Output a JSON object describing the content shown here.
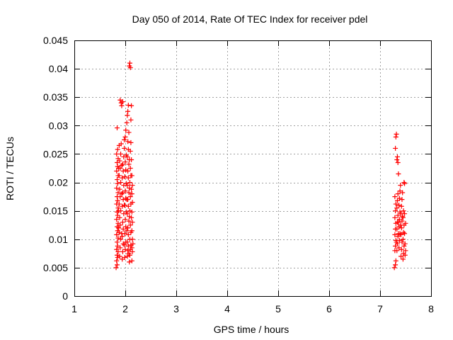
{
  "chart_data": {
    "type": "scatter",
    "title": "Day 050 of 2014, Rate Of TEC Index for receiver pdel",
    "xlabel": "GPS time / hours",
    "ylabel": "ROTI / TECUs",
    "xlim": [
      1,
      8
    ],
    "ylim": [
      0,
      0.045
    ],
    "xticks": [
      1,
      2,
      3,
      4,
      5,
      6,
      7,
      8
    ],
    "yticks": [
      0,
      0.005,
      0.01,
      0.015,
      0.02,
      0.025,
      0.03,
      0.035,
      0.04,
      0.045
    ],
    "ytick_labels": [
      "0",
      "0.005",
      "0.01",
      "0.015",
      "0.02",
      "0.025",
      "0.03",
      "0.035",
      "0.04",
      "0.045"
    ],
    "grid": true,
    "marker": "+",
    "series_color": "#ff0000",
    "series": [
      {
        "name": "ROTI",
        "points": [
          [
            1.82,
            0.005
          ],
          [
            1.84,
            0.0055
          ],
          [
            1.83,
            0.0062
          ],
          [
            1.85,
            0.0068
          ],
          [
            1.84,
            0.0072
          ],
          [
            1.86,
            0.0078
          ],
          [
            1.83,
            0.0082
          ],
          [
            1.85,
            0.0088
          ],
          [
            1.84,
            0.0095
          ],
          [
            1.86,
            0.0102
          ],
          [
            1.83,
            0.0108
          ],
          [
            1.85,
            0.0115
          ],
          [
            1.84,
            0.0122
          ],
          [
            1.86,
            0.0128
          ],
          [
            1.83,
            0.0135
          ],
          [
            1.85,
            0.0142
          ],
          [
            1.84,
            0.0148
          ],
          [
            1.86,
            0.0155
          ],
          [
            1.83,
            0.0162
          ],
          [
            1.85,
            0.0168
          ],
          [
            1.84,
            0.0175
          ],
          [
            1.86,
            0.0182
          ],
          [
            1.83,
            0.019
          ],
          [
            1.85,
            0.0198
          ],
          [
            1.84,
            0.0205
          ],
          [
            1.86,
            0.0212
          ],
          [
            1.83,
            0.022
          ],
          [
            1.85,
            0.0228
          ],
          [
            1.84,
            0.0235
          ],
          [
            1.86,
            0.0242
          ],
          [
            1.83,
            0.025
          ],
          [
            1.85,
            0.0258
          ],
          [
            1.84,
            0.0296
          ],
          [
            1.88,
            0.0265
          ],
          [
            1.89,
            0.007
          ],
          [
            1.9,
            0.0085
          ],
          [
            1.91,
            0.01
          ],
          [
            1.88,
            0.0112
          ],
          [
            1.9,
            0.0125
          ],
          [
            1.89,
            0.0138
          ],
          [
            1.91,
            0.015
          ],
          [
            1.88,
            0.0162
          ],
          [
            1.9,
            0.0175
          ],
          [
            1.89,
            0.0188
          ],
          [
            1.91,
            0.02
          ],
          [
            1.88,
            0.0212
          ],
          [
            1.9,
            0.0225
          ],
          [
            1.89,
            0.0238
          ],
          [
            1.91,
            0.025
          ],
          [
            1.92,
            0.0268
          ],
          [
            1.9,
            0.0345
          ],
          [
            1.92,
            0.034
          ],
          [
            1.93,
            0.0335
          ],
          [
            1.95,
            0.0342
          ],
          [
            1.94,
            0.0065
          ],
          [
            1.95,
            0.0078
          ],
          [
            1.96,
            0.0092
          ],
          [
            1.94,
            0.0105
          ],
          [
            1.96,
            0.0118
          ],
          [
            1.95,
            0.013
          ],
          [
            1.97,
            0.0145
          ],
          [
            1.94,
            0.0158
          ],
          [
            1.96,
            0.017
          ],
          [
            1.95,
            0.0182
          ],
          [
            1.97,
            0.0195
          ],
          [
            1.94,
            0.0208
          ],
          [
            1.96,
            0.022
          ],
          [
            1.95,
            0.0232
          ],
          [
            1.97,
            0.0245
          ],
          [
            1.98,
            0.026
          ],
          [
            1.98,
            0.0275
          ],
          [
            1.99,
            0.0068
          ],
          [
            2.0,
            0.0082
          ],
          [
            2.01,
            0.0095
          ],
          [
            1.99,
            0.011
          ],
          [
            2.01,
            0.0122
          ],
          [
            2.0,
            0.0135
          ],
          [
            2.02,
            0.0148
          ],
          [
            1.99,
            0.016
          ],
          [
            2.01,
            0.0172
          ],
          [
            2.0,
            0.0185
          ],
          [
            2.02,
            0.0198
          ],
          [
            1.99,
            0.021
          ],
          [
            2.01,
            0.0222
          ],
          [
            2.0,
            0.0236
          ],
          [
            2.02,
            0.0248
          ],
          [
            2.0,
            0.028
          ],
          [
            2.01,
            0.0292
          ],
          [
            2.03,
            0.0305
          ],
          [
            2.04,
            0.0318
          ],
          [
            2.05,
            0.0325
          ],
          [
            2.06,
            0.0336
          ],
          [
            2.04,
            0.007
          ],
          [
            2.05,
            0.008
          ],
          [
            2.06,
            0.0088
          ],
          [
            2.07,
            0.0075
          ],
          [
            2.04,
            0.0095
          ],
          [
            2.06,
            0.0108
          ],
          [
            2.05,
            0.012
          ],
          [
            2.07,
            0.0132
          ],
          [
            2.04,
            0.0145
          ],
          [
            2.06,
            0.0158
          ],
          [
            2.05,
            0.017
          ],
          [
            2.07,
            0.0182
          ],
          [
            2.04,
            0.0195
          ],
          [
            2.06,
            0.0208
          ],
          [
            2.05,
            0.022
          ],
          [
            2.07,
            0.0232
          ],
          [
            2.04,
            0.0245
          ],
          [
            2.06,
            0.0258
          ],
          [
            2.05,
            0.0272
          ],
          [
            2.07,
            0.0288
          ],
          [
            2.08,
            0.006
          ],
          [
            2.09,
            0.0072
          ],
          [
            2.1,
            0.0082
          ],
          [
            2.11,
            0.009
          ],
          [
            2.09,
            0.01
          ],
          [
            2.11,
            0.0112
          ],
          [
            2.1,
            0.0125
          ],
          [
            2.12,
            0.0138
          ],
          [
            2.09,
            0.015
          ],
          [
            2.11,
            0.0162
          ],
          [
            2.1,
            0.0175
          ],
          [
            2.12,
            0.0188
          ],
          [
            2.09,
            0.02
          ],
          [
            2.11,
            0.0212
          ],
          [
            2.1,
            0.0225
          ],
          [
            2.12,
            0.024
          ],
          [
            2.1,
            0.0255
          ],
          [
            2.11,
            0.027
          ],
          [
            2.08,
            0.0405
          ],
          [
            2.09,
            0.041
          ],
          [
            2.1,
            0.0402
          ],
          [
            2.13,
            0.0062
          ],
          [
            2.14,
            0.0078
          ],
          [
            2.13,
            0.0085
          ],
          [
            2.15,
            0.0092
          ],
          [
            2.14,
            0.01
          ],
          [
            2.13,
            0.0115
          ],
          [
            2.14,
            0.013
          ],
          [
            2.13,
            0.0148
          ],
          [
            2.14,
            0.0165
          ],
          [
            2.13,
            0.018
          ],
          [
            2.14,
            0.0195
          ],
          [
            2.13,
            0.0212
          ],
          [
            2.12,
            0.0335
          ],
          [
            2.11,
            0.031
          ],
          [
            1.87,
            0.012
          ],
          [
            1.93,
            0.011
          ],
          [
            1.98,
            0.009
          ],
          [
            2.03,
            0.0115
          ],
          [
            2.08,
            0.014
          ],
          [
            1.87,
            0.0225
          ],
          [
            1.93,
            0.023
          ],
          [
            1.98,
            0.016
          ],
          [
            2.03,
            0.017
          ],
          [
            2.08,
            0.019
          ],
          [
            1.87,
            0.015
          ],
          [
            1.93,
            0.018
          ],
          [
            2.08,
            0.024
          ],
          [
            7.28,
            0.005
          ],
          [
            7.3,
            0.0055
          ],
          [
            7.31,
            0.0062
          ],
          [
            7.29,
            0.008
          ],
          [
            7.3,
            0.0088
          ],
          [
            7.31,
            0.0098
          ],
          [
            7.29,
            0.0108
          ],
          [
            7.3,
            0.0118
          ],
          [
            7.31,
            0.0128
          ],
          [
            7.29,
            0.0138
          ],
          [
            7.3,
            0.015
          ],
          [
            7.31,
            0.0162
          ],
          [
            7.29,
            0.0175
          ],
          [
            7.3,
            0.026
          ],
          [
            7.31,
            0.028
          ],
          [
            7.32,
            0.0285
          ],
          [
            7.33,
            0.024
          ],
          [
            7.34,
            0.0245
          ],
          [
            7.35,
            0.0235
          ],
          [
            7.33,
            0.008
          ],
          [
            7.34,
            0.0092
          ],
          [
            7.35,
            0.0105
          ],
          [
            7.33,
            0.0118
          ],
          [
            7.34,
            0.013
          ],
          [
            7.35,
            0.0142
          ],
          [
            7.33,
            0.0155
          ],
          [
            7.34,
            0.0168
          ],
          [
            7.35,
            0.018
          ],
          [
            7.36,
            0.0215
          ],
          [
            7.37,
            0.0085
          ],
          [
            7.38,
            0.0098
          ],
          [
            7.39,
            0.011
          ],
          [
            7.37,
            0.0122
          ],
          [
            7.38,
            0.0135
          ],
          [
            7.39,
            0.0148
          ],
          [
            7.37,
            0.016
          ],
          [
            7.38,
            0.0172
          ],
          [
            7.39,
            0.0185
          ],
          [
            7.4,
            0.0195
          ],
          [
            7.41,
            0.007
          ],
          [
            7.42,
            0.0082
          ],
          [
            7.43,
            0.0095
          ],
          [
            7.41,
            0.0108
          ],
          [
            7.42,
            0.012
          ],
          [
            7.43,
            0.0132
          ],
          [
            7.41,
            0.0145
          ],
          [
            7.42,
            0.0158
          ],
          [
            7.43,
            0.017
          ],
          [
            7.44,
            0.0182
          ],
          [
            7.45,
            0.0065
          ],
          [
            7.46,
            0.0075
          ],
          [
            7.47,
            0.0088
          ],
          [
            7.45,
            0.01
          ],
          [
            7.46,
            0.0112
          ],
          [
            7.47,
            0.0125
          ],
          [
            7.45,
            0.0138
          ],
          [
            7.46,
            0.015
          ],
          [
            7.47,
            0.02
          ],
          [
            7.48,
            0.0198
          ],
          [
            7.49,
            0.0072
          ],
          [
            7.5,
            0.008
          ],
          [
            7.49,
            0.0092
          ],
          [
            7.48,
            0.011
          ],
          [
            7.5,
            0.0128
          ],
          [
            7.48,
            0.0145
          ],
          [
            7.32,
            0.0095
          ],
          [
            7.36,
            0.011
          ],
          [
            7.4,
            0.0125
          ],
          [
            7.44,
            0.014
          ],
          [
            7.36,
            0.013
          ]
        ]
      }
    ]
  }
}
